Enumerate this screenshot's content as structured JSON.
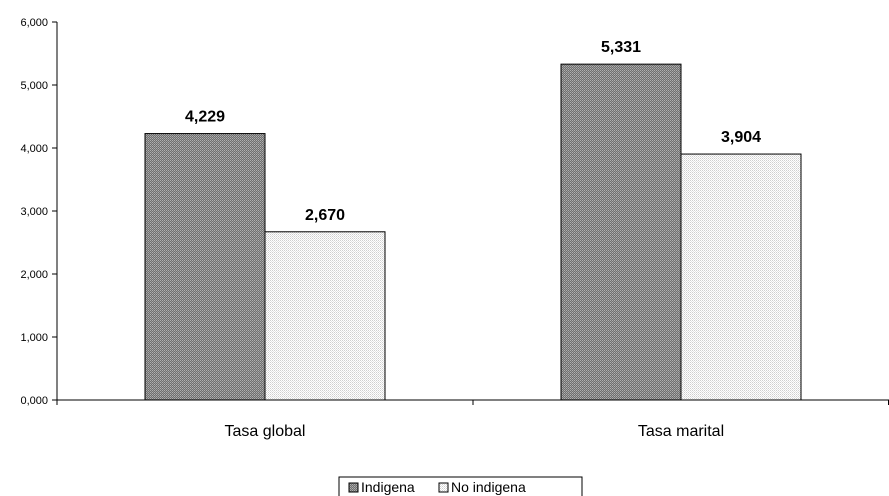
{
  "chart_data": {
    "type": "bar",
    "categories": [
      "Tasa global",
      "Tasa marital"
    ],
    "series": [
      {
        "name": "Indigena",
        "values": [
          4.229,
          5.331
        ],
        "labels": [
          "4,229",
          "5,331"
        ],
        "color": "#8a8a8a",
        "pattern": "dark-dots"
      },
      {
        "name": "No indigena",
        "values": [
          2.67,
          3.904
        ],
        "labels": [
          "2,670",
          "3,904"
        ],
        "color": "#f0f0f0",
        "pattern": "light-dots"
      }
    ],
    "ylim": [
      0,
      6
    ],
    "yticks": [
      {
        "value": 0,
        "label": "0,000"
      },
      {
        "value": 1,
        "label": "1,000"
      },
      {
        "value": 2,
        "label": "2,000"
      },
      {
        "value": 3,
        "label": "3,000"
      },
      {
        "value": 4,
        "label": "4,000"
      },
      {
        "value": 5,
        "label": "5,000"
      },
      {
        "value": 6,
        "label": "6,000"
      }
    ],
    "title": "",
    "xlabel": "",
    "ylabel": "",
    "grid": false,
    "legend_position": "bottom"
  }
}
